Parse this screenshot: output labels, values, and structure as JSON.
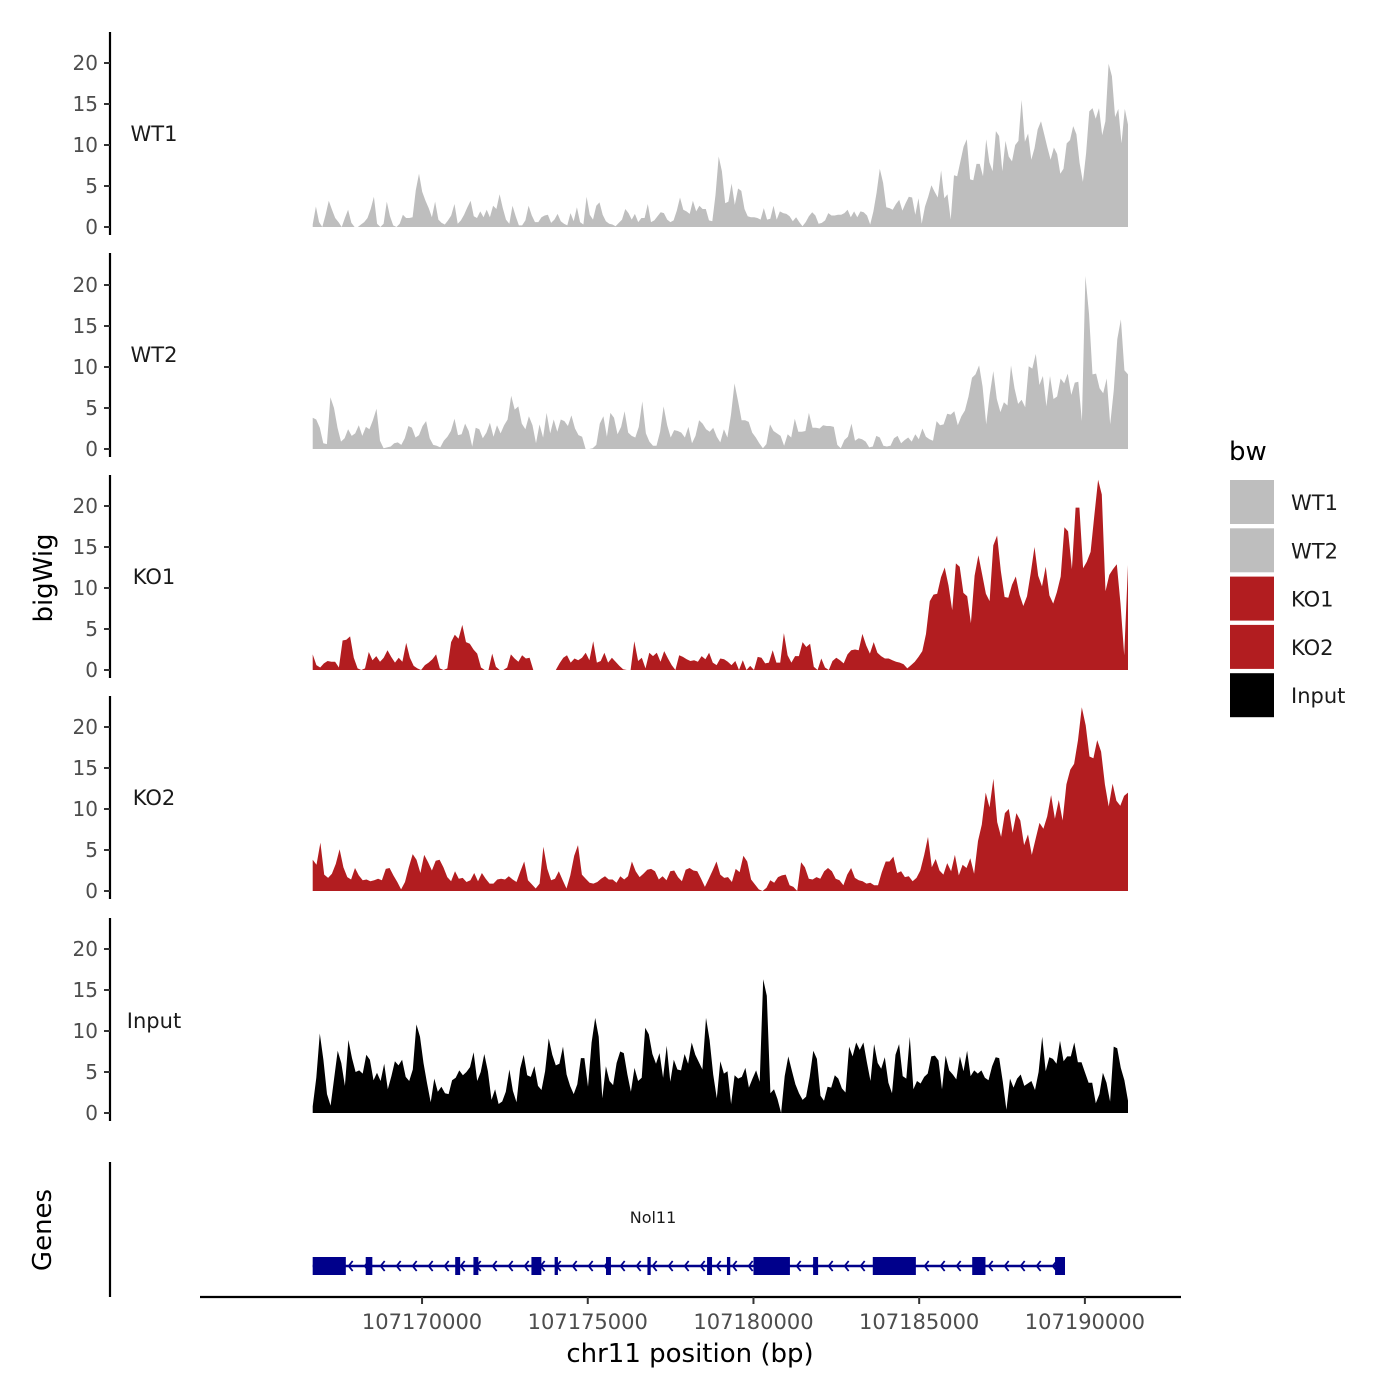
{
  "chart_data": {
    "type": "area",
    "ylabel": "bigWig",
    "xlabel": "chr11 position (bp)",
    "xlim": [
      107163300,
      107192900
    ],
    "data_range": [
      107166700,
      107191300
    ],
    "ylim": [
      0,
      24
    ],
    "yticks": [
      "0",
      "5",
      "10",
      "15",
      "20"
    ],
    "xticks": [
      "107170000",
      "107175000",
      "107180000",
      "107185000",
      "107190000"
    ],
    "series": [
      {
        "name": "WT1",
        "color": "#bebebe",
        "values": [
          0.3,
          2.5,
          0.6,
          0,
          1.5,
          3.2,
          2.1,
          1.1,
          0.6,
          0,
          1.1,
          2.1,
          0.5,
          0,
          0,
          0.3,
          0.6,
          1.1,
          2.2,
          3.7,
          0.4,
          0,
          0.4,
          3.1,
          1.3,
          0.2,
          0,
          0.4,
          1.5,
          1.1,
          1.1,
          1.2,
          4.5,
          6.5,
          4.3,
          3.2,
          2.3,
          1.2,
          3.1,
          0.9,
          0.5,
          0.3,
          0.8,
          1.4,
          2.8,
          0.4,
          0.8,
          1.5,
          2.4,
          3.2,
          1.3,
          1.1,
          1.9,
          1.2,
          2.1,
          1.2,
          2.6,
          2.2,
          4.0,
          2.3,
          0.9,
          0.4,
          2.6,
          1.3,
          0.2,
          0.2,
          0.8,
          2.6,
          1.4,
          0.6,
          0.6,
          1.2,
          1.4,
          1.5,
          0.5,
          0.9,
          1.6,
          0.7,
          0.4,
          0.2,
          1.7,
          0.7,
          2.4,
          0.6,
          0.3,
          3.7,
          1.5,
          0.9,
          2.6,
          3.0,
          1.5,
          0.7,
          0.4,
          0.3,
          0.1,
          0.5,
          0.9,
          2.2,
          1.7,
          0.9,
          1.6,
          0.6,
          1.1,
          1.1,
          2.8,
          0.6,
          0.8,
          1.3,
          1.8,
          1.7,
          0.9,
          0.6,
          0.8,
          2.0,
          3.6,
          2.1,
          1.9,
          1.6,
          3.2,
          1.9,
          2.6,
          2.2,
          2.2,
          0.8,
          0.7,
          3.9,
          8.6,
          6.8,
          2.9,
          3.1,
          5.3,
          2.7,
          4.7,
          4.4,
          2.2,
          1.3,
          1.2,
          1.2,
          1.1,
          0.9,
          2.3,
          0.9,
          1.0,
          2.6,
          0.9,
          1.9,
          1.7,
          1.6,
          1.3,
          0.7,
          1.2,
          0.6,
          0.1,
          0.6,
          1.3,
          1.8,
          1.4,
          0.4,
          0.5,
          0.8,
          1.7,
          1.4,
          1.4,
          1.5,
          1.5,
          1.7,
          2.1,
          1.2,
          1.9,
          1.2,
          1.9,
          1.8,
          1.4,
          0.3,
          1.9,
          4.2,
          7.1,
          5.4,
          2.4,
          2.3,
          2.1,
          2.8,
          3.3,
          2.0,
          2.9,
          3.7,
          3.6,
          1.5,
          3.5,
          0.4,
          2.5,
          3.7,
          5.1,
          4.3,
          3.6,
          6.9,
          3.5,
          4.0,
          0.9,
          6.3,
          6.2,
          8.0,
          9.8,
          10.7,
          5.8,
          5.7,
          7.7,
          7.7,
          6.2,
          10.7,
          7.9,
          6.8,
          11.7,
          11.1,
          6.8,
          10.5,
          8.6,
          8.0,
          10.0,
          10.5,
          15.5,
          10.4,
          11.4,
          8.2,
          9.6,
          11.9,
          12.9,
          11.3,
          9.7,
          8.2,
          9.7,
          8.9,
          6.5,
          7.1,
          10.2,
          10.6,
          12.3,
          11.3,
          7.8,
          5.5,
          9.0,
          14.1,
          14.5,
          13.2,
          14.5,
          11.2,
          12.9,
          19.9,
          18.4,
          13.4,
          14.4,
          10.2,
          14.4,
          12.5
        ]
      },
      {
        "name": "WT2",
        "color": "#bebebe",
        "values": [
          3.8,
          3.6,
          2.6,
          0.7,
          0.6,
          6.3,
          5.0,
          2.6,
          0.9,
          1.3,
          2.4,
          1.6,
          1.9,
          2.9,
          1.6,
          2.7,
          2.4,
          3.5,
          4.9,
          1.0,
          0.1,
          0.2,
          0.3,
          0.7,
          0.8,
          0.5,
          1.3,
          2.8,
          2.6,
          1.4,
          1.7,
          2.8,
          3.4,
          1.3,
          0.5,
          0.4,
          0.2,
          1.0,
          1.5,
          2.2,
          3.7,
          1.7,
          1.8,
          3.1,
          2.2,
          0.3,
          2.6,
          2.4,
          1.3,
          2.0,
          3.2,
          1.5,
          2.9,
          1.9,
          2.9,
          3.6,
          6.5,
          4.8,
          5.2,
          3.1,
          2.4,
          4.0,
          2.9,
          0.7,
          3.0,
          1.4,
          4.4,
          1.9,
          3.6,
          2.1,
          3.6,
          3.4,
          2.8,
          4.1,
          2.5,
          1.7,
          1.5,
          0,
          0,
          0.1,
          0.5,
          3.1,
          4.0,
          1.5,
          4.4,
          3.8,
          1.8,
          2.7,
          4.6,
          2.0,
          1.6,
          1.4,
          2.7,
          5.8,
          1.9,
          0.9,
          0.4,
          0.4,
          2.1,
          5.2,
          2.9,
          1.4,
          2.3,
          2.2,
          2.0,
          1.4,
          2.7,
          0.7,
          1.6,
          3.5,
          3.1,
          2.4,
          2.1,
          2.6,
          1.5,
          0.8,
          2.4,
          1.4,
          4.2,
          8.0,
          5.8,
          3.5,
          3.5,
          3.3,
          2.0,
          1.4,
          0.7,
          0.1,
          0.6,
          3.0,
          2.2,
          1.9,
          1.6,
          0.4,
          1.8,
          1.4,
          3.7,
          2.1,
          2.1,
          2.2,
          4.4,
          2.6,
          2.6,
          2.5,
          2.9,
          2.8,
          2.8,
          2.7,
          0.5,
          0.1,
          1.1,
          1.5,
          3.1,
          1.0,
          1.3,
          1.2,
          0.9,
          0.2,
          0.3,
          1.6,
          1.4,
          0.4,
          0.3,
          0.4,
          1.3,
          1.6,
          0.7,
          1.1,
          1.4,
          0.9,
          1.8,
          1.2,
          2.5,
          1.5,
          1.2,
          1.0,
          3.4,
          2.9,
          3.0,
          4.3,
          4.2,
          4.6,
          2.9,
          4.0,
          4.7,
          6.4,
          8.7,
          9.1,
          10.2,
          7.6,
          3.0,
          6.6,
          9.5,
          6.1,
          4.5,
          5.7,
          5.3,
          10.2,
          7.4,
          5.5,
          6.0,
          5.1,
          10.1,
          9.8,
          11.6,
          7.8,
          8.9,
          5.2,
          8.9,
          6.1,
          6.4,
          8.6,
          8.0,
          9.2,
          6.6,
          8.1,
          8.2,
          3.4,
          21.1,
          16.5,
          9.1,
          9.2,
          7.4,
          6.8,
          8.6,
          3.0,
          7.2,
          13.4,
          15.8,
          9.6,
          9.1
        ]
      },
      {
        "name": "KO1",
        "color": "#b21d20",
        "values": [
          1.9,
          0.6,
          0.3,
          0.8,
          1.1,
          1.0,
          1.0,
          0.3,
          3.6,
          3.7,
          4.1,
          1.5,
          0.2,
          0,
          0.2,
          2.2,
          1.2,
          1.7,
          1.0,
          1.5,
          2.4,
          1.6,
          0.9,
          1.5,
          1.0,
          3.3,
          1.5,
          0.5,
          0.2,
          0,
          0.6,
          0.9,
          1.3,
          1.9,
          0.2,
          0,
          0.2,
          3.4,
          4.3,
          3.8,
          5.5,
          3.4,
          3.2,
          2.5,
          2.0,
          0.3,
          0,
          0,
          2.0,
          0.4,
          0,
          0,
          0.3,
          1.9,
          1.4,
          1.0,
          1.8,
          1.4,
          1.5,
          0,
          0,
          0,
          0,
          0,
          0,
          0,
          0.8,
          1.5,
          1.8,
          0.9,
          1.4,
          1.2,
          1.5,
          2.1,
          1.2,
          3.5,
          0.9,
          1.1,
          2.1,
          0.9,
          1.5,
          1.0,
          0.5,
          0.1,
          0,
          0,
          3.5,
          1.1,
          1.5,
          0.2,
          2.1,
          1.7,
          2.1,
          1.0,
          2.3,
          1.4,
          0.6,
          0,
          1.8,
          1.6,
          1.3,
          1.1,
          1.2,
          1.0,
          1.7,
          1.3,
          2.1,
          0.9,
          0.6,
          1.4,
          1.3,
          1.0,
          0.6,
          1.1,
          0,
          1.2,
          0,
          0.5,
          0,
          1.6,
          1.5,
          0.8,
          0.9,
          2.4,
          0.9,
          0.9,
          4.5,
          1.8,
          0.9,
          1.7,
          1.7,
          3.4,
          2.8,
          3.2,
          0.4,
          0,
          1.4,
          0.3,
          0,
          1.1,
          1.5,
          1.2,
          0.8,
          1.9,
          2.4,
          2.5,
          2.4,
          4.4,
          3.0,
          2.0,
          3.4,
          2.1,
          1.7,
          1.4,
          1.4,
          1.2,
          1.0,
          0.9,
          0.7,
          0.2,
          0.6,
          1.0,
          1.6,
          2.3,
          4.4,
          8.4,
          9.2,
          9.3,
          11.3,
          12.5,
          10.3,
          7.3,
          13.0,
          12.6,
          9.4,
          9.0,
          5.7,
          11.5,
          14.0,
          11.7,
          9.3,
          8.4,
          15.2,
          16.4,
          12.1,
          8.9,
          8.8,
          10.4,
          11.4,
          9.2,
          7.8,
          9.0,
          11.8,
          15.0,
          11.5,
          10.2,
          12.6,
          9.1,
          8.1,
          9.5,
          11.4,
          17.4,
          16.9,
          12.3,
          19.8,
          19.8,
          12.4,
          13.2,
          14.4,
          18.8,
          23.2,
          21.4,
          9.6,
          11.6,
          12.3,
          12.9,
          8.1,
          1.8,
          12.8
        ]
      },
      {
        "name": "KO2",
        "color": "#b21d20",
        "values": [
          3.8,
          3.2,
          5.9,
          2.0,
          1.6,
          2.1,
          3.3,
          5.1,
          2.9,
          1.7,
          1.4,
          2.8,
          1.9,
          1.3,
          1.4,
          1.2,
          1.3,
          1.5,
          1.3,
          2.7,
          2.8,
          1.9,
          1.1,
          0.2,
          1.1,
          2.9,
          4.5,
          3.8,
          2.2,
          4.4,
          3.5,
          2.5,
          3.7,
          3.8,
          2.9,
          1.7,
          1.2,
          2.4,
          1.5,
          1.6,
          1.1,
          1.3,
          2.2,
          1.2,
          2.2,
          1.5,
          0.9,
          0.9,
          1.4,
          1.5,
          1.4,
          1.8,
          1.4,
          1.1,
          2.4,
          3.6,
          1.3,
          0.8,
          0.3,
          0.9,
          5.4,
          2.7,
          1.3,
          1.5,
          2.4,
          1.3,
          0.3,
          1.9,
          4.3,
          5.6,
          2.0,
          1.5,
          1.0,
          0.9,
          1.1,
          1.5,
          1.8,
          1.4,
          1.4,
          1.0,
          1.8,
          1.4,
          1.8,
          3.6,
          2.4,
          1.7,
          2.1,
          2.6,
          2.7,
          2.4,
          1.4,
          1.8,
          1.3,
          2.4,
          2.5,
          1.7,
          1.2,
          2.6,
          2.8,
          2.5,
          2.4,
          1.5,
          0.5,
          1.5,
          2.5,
          3.6,
          2.0,
          1.6,
          1.7,
          1.1,
          2.7,
          2.3,
          4.3,
          3.6,
          1.4,
          0.8,
          0.2,
          0,
          0.4,
          1.3,
          1.0,
          1.7,
          1.9,
          2.0,
          0.7,
          0.5,
          0,
          3.5,
          2.9,
          1.5,
          1.4,
          1.7,
          1.5,
          2.4,
          2.8,
          2.4,
          1.5,
          1.3,
          0.7,
          2.0,
          2.8,
          1.6,
          1.3,
          1.2,
          0.9,
          1.0,
          0.7,
          0.7,
          2.3,
          3.6,
          3.6,
          4.2,
          2.2,
          2.4,
          1.7,
          1.8,
          1.2,
          1.6,
          2.5,
          4.4,
          6.6,
          2.9,
          3.9,
          2.5,
          2.0,
          3.4,
          2.4,
          4.4,
          1.9,
          3.2,
          2.8,
          4.0,
          2.1,
          6.1,
          8.1,
          12.0,
          10.2,
          13.7,
          8.4,
          6.6,
          9.5,
          10.0,
          7.1,
          9.5,
          8.6,
          5.6,
          6.9,
          4.4,
          6.4,
          8.3,
          7.6,
          9.1,
          11.7,
          8.8,
          11.1,
          8.6,
          13.0,
          14.8,
          15.5,
          18.4,
          22.4,
          20.2,
          16.4,
          16.2,
          18.4,
          17.0,
          13.0,
          10.3,
          13.1,
          11.0,
          10.4,
          11.6,
          12.0
        ]
      },
      {
        "name": "Input",
        "color": "#000000",
        "values": [
          0.8,
          4.3,
          9.7,
          6.5,
          2.3,
          0.9,
          4.2,
          7.6,
          6.1,
          3.3,
          8.9,
          6.7,
          5.0,
          5.2,
          4.8,
          7.1,
          6.5,
          4.0,
          4.9,
          3.9,
          6.0,
          2.9,
          4.5,
          6.3,
          5.8,
          6.5,
          4.4,
          3.9,
          5.3,
          10.8,
          9.3,
          6.1,
          3.6,
          1.3,
          4.2,
          2.6,
          3.2,
          2.4,
          2.3,
          4.0,
          4.3,
          5.2,
          4.6,
          5.0,
          5.6,
          7.4,
          3.9,
          5.0,
          7.2,
          5.1,
          1.6,
          2.9,
          1.1,
          1.4,
          2.6,
          5.3,
          2.7,
          1.3,
          5.4,
          7.1,
          4.6,
          4.4,
          5.7,
          3.3,
          2.8,
          5.1,
          9.1,
          7.1,
          5.8,
          6.0,
          8.1,
          4.7,
          3.3,
          2.3,
          3.5,
          6.7,
          6.7,
          3.2,
          8.6,
          11.6,
          9.3,
          1.8,
          5.7,
          3.9,
          3.4,
          6.1,
          7.5,
          7.3,
          4.7,
          2.6,
          5.5,
          3.9,
          4.3,
          10.4,
          9.6,
          7.2,
          6.0,
          7.3,
          4.3,
          8.2,
          3.8,
          6.5,
          5.3,
          5.2,
          7.2,
          6.0,
          8.6,
          7.1,
          6.2,
          5.3,
          11.6,
          8.9,
          4.7,
          1.8,
          6.3,
          4.8,
          5.1,
          1.1,
          4.6,
          4.2,
          4.4,
          5.5,
          3.1,
          4.2,
          5.2,
          3.8,
          16.3,
          14.3,
          2.4,
          2.9,
          1.7,
          0,
          4.5,
          6.9,
          5.2,
          3.5,
          2.4,
          1.6,
          2.0,
          4.4,
          7.6,
          6.6,
          2.1,
          1.5,
          3.2,
          3.1,
          4.6,
          4.2,
          3.0,
          2.5,
          8.1,
          6.9,
          8.6,
          7.7,
          8.6,
          6.2,
          3.9,
          8.4,
          6.1,
          5.4,
          6.8,
          3.7,
          2.4,
          7.1,
          8.4,
          4.5,
          4.2,
          9.3,
          2.9,
          3.9,
          3.6,
          4.4,
          4.8,
          6.9,
          7.0,
          6.4,
          2.9,
          7.0,
          5.2,
          4.7,
          4.1,
          6.9,
          5.1,
          7.6,
          4.5,
          5.2,
          4.8,
          5.2,
          4.3,
          4.0,
          5.7,
          6.8,
          6.7,
          3.8,
          0.4,
          4.2,
          3.1,
          4.2,
          4.7,
          3.3,
          3.6,
          3.9,
          2.8,
          5.0,
          9.3,
          5.1,
          6.8,
          6.6,
          6.0,
          8.8,
          6.3,
          6.9,
          6.9,
          8.6,
          6.2,
          6.2,
          4.9,
          3.7,
          3.7,
          1.2,
          2.3,
          4.9,
          3.7,
          1.4,
          8.1,
          7.9,
          5.5,
          4.0,
          1.5
        ]
      }
    ],
    "genes": {
      "track_label": "Genes",
      "name": "Nol11",
      "start": 107166700,
      "end": 107189400,
      "strand": "-",
      "color": "#00008b",
      "exons": [
        [
          107166700,
          107167700
        ],
        [
          107168300,
          107168500
        ],
        [
          107171000,
          107171150
        ],
        [
          107171550,
          107171700
        ],
        [
          107173300,
          107173600
        ],
        [
          107174000,
          107174100
        ],
        [
          107175550,
          107175700
        ],
        [
          107176800,
          107176900
        ],
        [
          107178600,
          107178750
        ],
        [
          107179200,
          107179300
        ],
        [
          107180000,
          107181100
        ],
        [
          107181800,
          107181950
        ],
        [
          107183600,
          107184900
        ],
        [
          107186600,
          107187000
        ],
        [
          107189100,
          107189400
        ]
      ]
    },
    "legend": {
      "title": "bw",
      "position": "right",
      "entries": [
        {
          "label": "WT1",
          "color": "#bebebe"
        },
        {
          "label": "WT2",
          "color": "#bebebe"
        },
        {
          "label": "KO1",
          "color": "#b21d20"
        },
        {
          "label": "KO2",
          "color": "#b21d20"
        },
        {
          "label": "Input",
          "color": "#000000"
        }
      ]
    }
  }
}
